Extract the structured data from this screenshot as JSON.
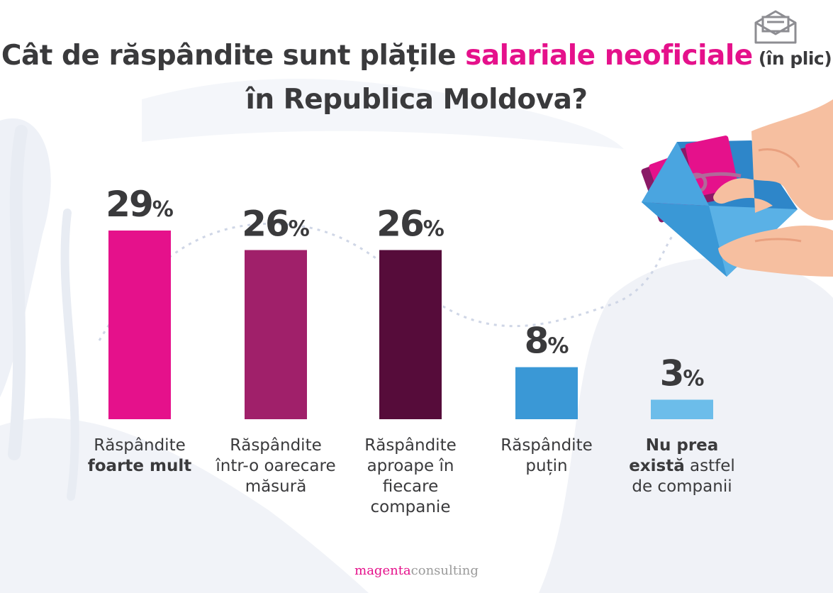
{
  "title": {
    "part1": "Cât de răspândite sunt plățile ",
    "accent": "salariale neoficiale",
    "small": " (în plic)",
    "line2": "în Republica Moldova?"
  },
  "brand": {
    "magenta": "magenta",
    "consulting": "consulting"
  },
  "icons": {
    "envelope": "envelope-icon",
    "illustration": "hands-envelope-money-icon"
  },
  "colors": [
    "#e5118b",
    "#a0206a",
    "#560c3a",
    "#3a98d6",
    "#6cbdea"
  ],
  "chart_data": {
    "type": "bar",
    "categories": [
      "Răspândite foarte mult",
      "Răspândite într-o oarecare măsură",
      "Răspândite aproape în fiecare companie",
      "Răspândite puțin",
      "Nu prea există astfel de companii"
    ],
    "values": [
      29,
      26,
      26,
      8,
      3
    ],
    "value_suffix": "%",
    "ylim": [
      0,
      29
    ],
    "grid": false,
    "legend": "none"
  },
  "labels": [
    {
      "line1": "Răspândite",
      "bold": "foarte mult",
      "rest": ""
    },
    {
      "line1": "Răspândite",
      "bold": "",
      "rest": "într-o oarecare măsură"
    },
    {
      "line1": "Răspândite",
      "bold": "",
      "rest": "aproape în fiecare companie"
    },
    {
      "line1": "Răspândite",
      "bold": "",
      "rest": "puțin"
    },
    {
      "line1": "",
      "bold": "Nu prea există",
      "rest": "astfel de companii"
    }
  ]
}
